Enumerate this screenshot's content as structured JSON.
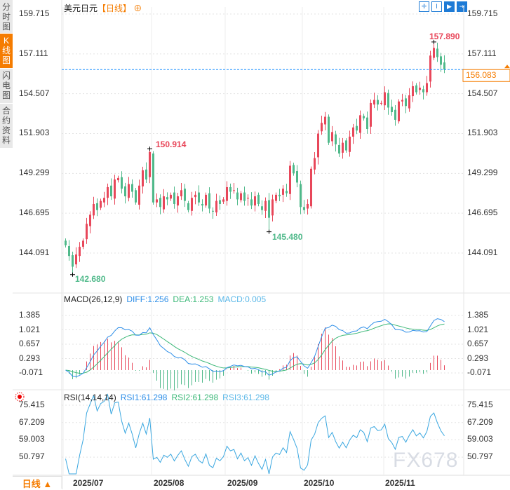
{
  "sidebar": {
    "tabs": [
      {
        "label": "分时图",
        "active": false
      },
      {
        "label": "K线图",
        "active": true
      },
      {
        "label": "闪电图",
        "active": false
      },
      {
        "label": "合约资料",
        "active": false
      }
    ]
  },
  "header": {
    "symbol": "美元日元",
    "period": "【日线】",
    "add_icon": "plus-circle-icon",
    "tools": [
      "crosshair-icon",
      "fit-icon",
      "play-icon",
      "goto-end-icon"
    ]
  },
  "price_axis": {
    "ticks": [
      "159.715",
      "157.111",
      "154.507",
      "151.903",
      "149.299",
      "146.695",
      "144.091"
    ],
    "current": "156.083"
  },
  "annotations": {
    "high1": "150.914",
    "high2": "157.890",
    "low1": "142.680",
    "low2": "145.480"
  },
  "macd": {
    "label": "MACD(26,12,9)",
    "diff": "DIFF:1.256",
    "dea": "DEA:1.253",
    "macd": "MACD:0.005",
    "ticks": [
      "1.385",
      "1.021",
      "0.657",
      "0.293",
      "-0.071"
    ]
  },
  "rsi": {
    "label": "RSI(14,14,14)",
    "rsi1": "RSI1:61.298",
    "rsi2": "RSI2:61.298",
    "rsi3": "RSI3:61.298",
    "ticks": [
      "75.415",
      "67.209",
      "59.003",
      "50.797"
    ]
  },
  "x_axis": {
    "labels": [
      "2025/07",
      "2025/08",
      "2025/09",
      "2025/10",
      "2025/11"
    ]
  },
  "period_button": "日线 ▲",
  "watermark": "FX678",
  "colors": {
    "up": "#e8475a",
    "down": "#4fb98a",
    "diff": "#2f8fe8",
    "dea": "#3cb878",
    "rsi": "#3aa7e0",
    "accent": "#f57c00"
  },
  "chart_data": {
    "type": "candlestick",
    "closes": [
      144.6,
      143.9,
      143.2,
      144.0,
      144.5,
      144.9,
      146.0,
      146.6,
      147.3,
      146.9,
      147.5,
      147.7,
      148.4,
      147.8,
      148.9,
      149.0,
      148.3,
      147.8,
      148.6,
      148.1,
      147.4,
      148.5,
      149.5,
      148.9,
      150.7,
      147.4,
      147.6,
      147.1,
      147.8,
      147.6,
      147.9,
      147.3,
      147.8,
      148.2,
      147.5,
      146.9,
      147.7,
      147.9,
      147.4,
      147.2,
      147.9,
      147.0,
      146.8,
      147.5,
      147.3,
      147.6,
      148.4,
      148.1,
      148.2,
      147.6,
      148.0,
      147.5,
      147.7,
      147.2,
      147.8,
      147.3,
      146.9,
      147.5,
      146.4,
      147.6,
      147.9,
      147.8,
      148.3,
      148.0,
      149.8,
      149.3,
      148.7,
      147.1,
      146.9,
      147.3,
      149.6,
      150.3,
      151.9,
      152.6,
      153.0,
      151.3,
      152.0,
      151.2,
      150.6,
      151.3,
      150.8,
      151.7,
      152.3,
      152.1,
      153.1,
      152.9,
      152.2,
      153.9,
      154.1,
      153.8,
      153.9,
      154.6,
      153.6,
      153.3,
      152.8,
      154.0,
      154.1,
      153.7,
      154.4,
      155.0,
      154.6,
      154.9,
      154.6,
      155.2,
      157.0,
      157.5,
      156.9,
      156.4,
      156.083
    ],
    "ylim": [
      144.091,
      159.715
    ]
  }
}
